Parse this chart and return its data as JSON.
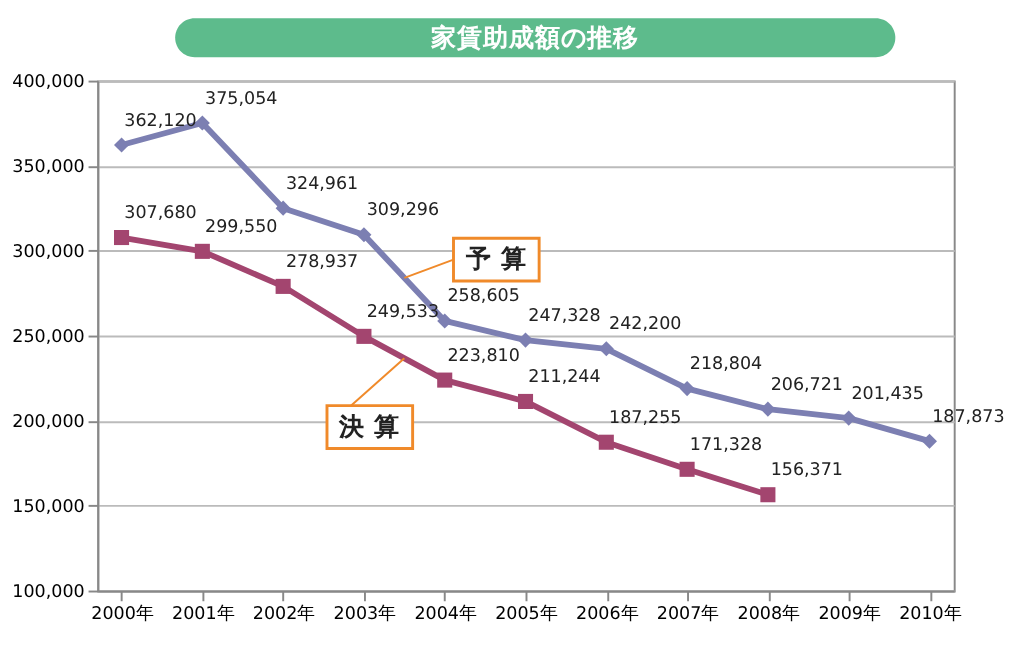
{
  "chart_data": {
    "type": "line",
    "title": "家賃助成額の推移",
    "categories": [
      "2000年",
      "2001年",
      "2002年",
      "2003年",
      "2004年",
      "2005年",
      "2006年",
      "2007年",
      "2008年",
      "2009年",
      "2010年"
    ],
    "series": [
      {
        "name": "予 算",
        "color": "#7c7fb2",
        "marker": "diamond",
        "values": [
          362120,
          375054,
          324961,
          309296,
          258605,
          247328,
          242200,
          218804,
          206721,
          201435,
          187873
        ],
        "value_labels": [
          "362,120",
          "375,054",
          "324,961",
          "309,296",
          "258,605",
          "247,328",
          "242,200",
          "218,804",
          "206,721",
          "201,435",
          "187,873"
        ]
      },
      {
        "name": "決 算",
        "color": "#a3456f",
        "marker": "square",
        "values": [
          307680,
          299550,
          278937,
          249533,
          223810,
          211244,
          187255,
          171328,
          156371,
          null,
          null
        ],
        "value_labels": [
          "307,680",
          "299,550",
          "278,937",
          "249,533",
          "223,810",
          "211,244",
          "187,255",
          "171,328",
          "156,371",
          null,
          null
        ]
      }
    ],
    "ylim": [
      100000,
      400000
    ],
    "yticks": [
      {
        "value": 100000,
        "label": "100,000"
      },
      {
        "value": 150000,
        "label": "150,000"
      },
      {
        "value": 200000,
        "label": "200,000"
      },
      {
        "value": 250000,
        "label": "250,000"
      },
      {
        "value": 300000,
        "label": "300,000"
      },
      {
        "value": 350000,
        "label": "350,000"
      },
      {
        "value": 400000,
        "label": "400,000"
      }
    ],
    "grid": "y",
    "data_labels": true,
    "legend": false,
    "line_style": "solid"
  }
}
